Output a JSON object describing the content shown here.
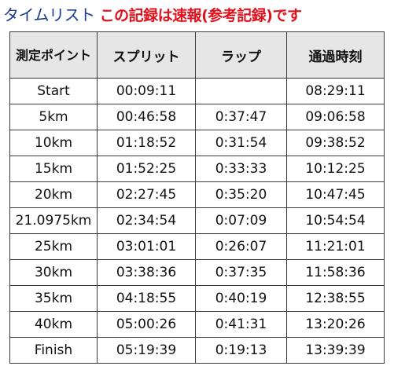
{
  "heading": {
    "title": "タイムリスト",
    "note": "この記録は速報(参考記録)です"
  },
  "table": {
    "columns": [
      "測定ポイント",
      "スプリット",
      "ラップ",
      "通過時刻"
    ],
    "rows": [
      {
        "point": "Start",
        "split": "00:09:11",
        "lap": "",
        "passing": "08:29:11"
      },
      {
        "point": "5km",
        "split": "00:46:58",
        "lap": "0:37:47",
        "passing": "09:06:58"
      },
      {
        "point": "10km",
        "split": "01:18:52",
        "lap": "0:31:54",
        "passing": "09:38:52"
      },
      {
        "point": "15km",
        "split": "01:52:25",
        "lap": "0:33:33",
        "passing": "10:12:25"
      },
      {
        "point": "20km",
        "split": "02:27:45",
        "lap": "0:35:20",
        "passing": "10:47:45"
      },
      {
        "point": "21.0975km",
        "split": "02:34:54",
        "lap": "0:07:09",
        "passing": "10:54:54"
      },
      {
        "point": "25km",
        "split": "03:01:01",
        "lap": "0:26:07",
        "passing": "11:21:01"
      },
      {
        "point": "30km",
        "split": "03:38:36",
        "lap": "0:37:35",
        "passing": "11:58:36"
      },
      {
        "point": "35km",
        "split": "04:18:55",
        "lap": "0:40:19",
        "passing": "12:38:55"
      },
      {
        "point": "40km",
        "split": "05:00:26",
        "lap": "0:41:31",
        "passing": "13:20:26"
      },
      {
        "point": "Finish",
        "split": "05:19:39",
        "lap": "0:19:13",
        "passing": "13:39:39"
      }
    ]
  }
}
